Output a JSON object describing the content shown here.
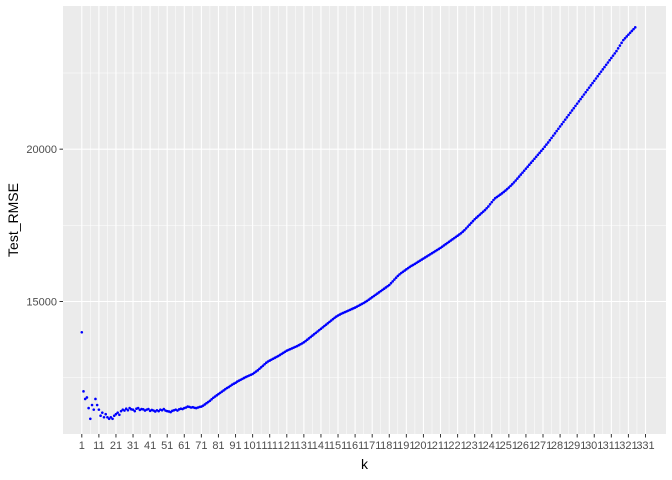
{
  "chart_data": {
    "type": "scatter",
    "title": "",
    "xlabel": "k",
    "ylabel": "Test_RMSE",
    "xlim": [
      -10,
      343
    ],
    "ylim": [
      10650,
      24700
    ],
    "x_ticks": [
      1,
      11,
      21,
      31,
      41,
      51,
      61,
      71,
      81,
      91,
      101,
      111,
      121,
      131,
      141,
      151,
      161,
      171,
      181,
      191,
      201,
      211,
      221,
      231,
      241,
      251,
      261,
      271,
      281,
      291,
      301,
      311,
      321,
      331
    ],
    "y_ticks": [
      15000,
      20000
    ],
    "y_tick_labels": [
      "15000",
      "20000"
    ],
    "grid": true,
    "point_color": "#0000ff",
    "panel_background": "#ebebeb",
    "grid_color": "#ffffff",
    "series": [
      {
        "k_start": 1,
        "k_end": 335,
        "values": [
          13990,
          12050,
          11800,
          11850,
          11500,
          11150,
          11600,
          11450,
          11800,
          11600,
          11450,
          11250,
          11350,
          11200,
          11300,
          11200,
          11150,
          11200,
          11150,
          11250,
          11300,
          11350,
          11280,
          11400,
          11450,
          11420,
          11480,
          11430,
          11500,
          11460,
          11450,
          11400,
          11480,
          11500,
          11440,
          11470,
          11460,
          11420,
          11450,
          11470,
          11410,
          11440,
          11420,
          11390,
          11430,
          11400,
          11450,
          11430,
          11470,
          11420,
          11400,
          11390,
          11370,
          11410,
          11430,
          11450,
          11420,
          11460,
          11480,
          11470,
          11500,
          11520,
          11550,
          11540,
          11520,
          11530,
          11510,
          11500,
          11520,
          11540,
          11550,
          11580,
          11620,
          11660,
          11700,
          11740,
          11790,
          11840,
          11880,
          11920,
          11960,
          12000,
          12040,
          12080,
          12120,
          12160,
          12190,
          12230,
          12270,
          12300,
          12330,
          12370,
          12400,
          12430,
          12460,
          12490,
          12520,
          12545,
          12570,
          12595,
          12620,
          12660,
          12700,
          12740,
          12790,
          12840,
          12890,
          12940,
          12990,
          13030,
          13060,
          13090,
          13120,
          13150,
          13180,
          13210,
          13245,
          13280,
          13315,
          13350,
          13385,
          13410,
          13435,
          13460,
          13485,
          13510,
          13535,
          13565,
          13595,
          13625,
          13660,
          13700,
          13745,
          13790,
          13835,
          13880,
          13925,
          13970,
          14015,
          14060,
          14105,
          14150,
          14195,
          14240,
          14285,
          14330,
          14375,
          14420,
          14465,
          14505,
          14540,
          14570,
          14600,
          14625,
          14650,
          14675,
          14700,
          14725,
          14750,
          14775,
          14800,
          14830,
          14860,
          14890,
          14920,
          14950,
          14985,
          15020,
          15060,
          15100,
          15140,
          15180,
          15220,
          15260,
          15300,
          15340,
          15380,
          15420,
          15460,
          15500,
          15540,
          15600,
          15660,
          15720,
          15780,
          15840,
          15890,
          15935,
          15975,
          16015,
          16055,
          16095,
          16135,
          16170,
          16200,
          16235,
          16270,
          16305,
          16340,
          16375,
          16410,
          16445,
          16480,
          16515,
          16550,
          16585,
          16620,
          16655,
          16690,
          16725,
          16760,
          16800,
          16840,
          16880,
          16920,
          16960,
          17000,
          17040,
          17080,
          17120,
          17160,
          17200,
          17240,
          17290,
          17340,
          17400,
          17460,
          17520,
          17580,
          17640,
          17700,
          17750,
          17800,
          17850,
          17900,
          17950,
          18000,
          18060,
          18120,
          18190,
          18260,
          18330,
          18390,
          18430,
          18470,
          18510,
          18550,
          18595,
          18640,
          18690,
          18740,
          18795,
          18850,
          18910,
          18970,
          19035,
          19100,
          19165,
          19230,
          19295,
          19360,
          19425,
          19490,
          19555,
          19620,
          19685,
          19750,
          19815,
          19880,
          19945,
          20010,
          20080,
          20150,
          20220,
          20295,
          20370,
          20445,
          20520,
          20595,
          20670,
          20745,
          20820,
          20895,
          20970,
          21045,
          21120,
          21195,
          21270,
          21345,
          21420,
          21495,
          21570,
          21645,
          21720,
          21795,
          21870,
          21945,
          22020,
          22095,
          22170,
          22245,
          22320,
          22395,
          22470,
          22545,
          22620,
          22695,
          22770,
          22845,
          22920,
          22995,
          23070,
          23145,
          23220,
          23310,
          23400,
          23490,
          23580,
          23640,
          23700,
          23760,
          23820,
          23880,
          23940,
          24000
        ]
      }
    ]
  }
}
